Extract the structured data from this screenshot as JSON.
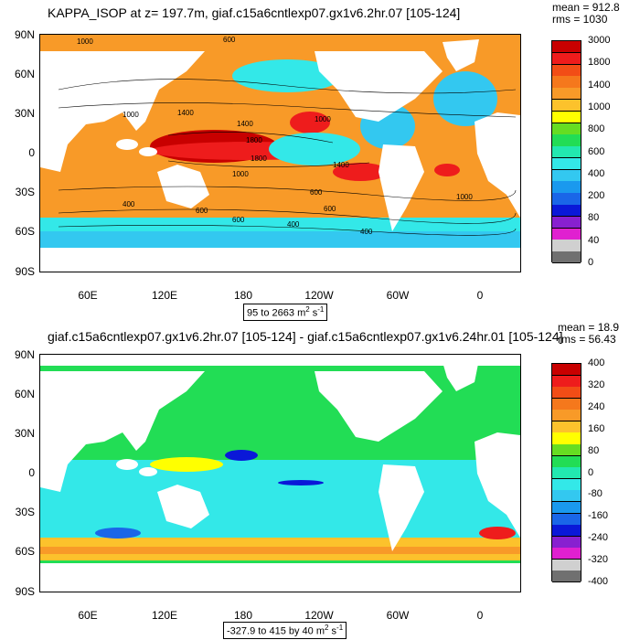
{
  "panel1": {
    "title": "KAPPA_ISOP at z= 197.7m, giaf.c15a6cntlexp07.gx1v6.2hr.07 [105-124]",
    "mean": "mean = 912.8",
    "rms": "rms = 1030",
    "range_text": "95 to 2663",
    "range_units": "m",
    "range_units_exp": "2",
    "range_units_tail": " s",
    "range_units_tail_exp": "-1",
    "lat_labels": [
      "90N",
      "60N",
      "30N",
      "0",
      "30S",
      "60S",
      "90S"
    ],
    "lon_labels": [
      "60E",
      "120E",
      "180",
      "120W",
      "60W",
      "0"
    ],
    "colorbar_labels": [
      "3000",
      "1800",
      "1400",
      "1000",
      "800",
      "600",
      "400",
      "200",
      "80",
      "40",
      "0"
    ],
    "colorbar_colors": [
      "#c80000",
      "#ee1c1c",
      "#f24d16",
      "#f5781c",
      "#f89a28",
      "#fcc22c",
      "#ffff00",
      "#66dd22",
      "#22dd55",
      "#22e8b0",
      "#33e8e8",
      "#33c8f0",
      "#1a99ee",
      "#1a66e8",
      "#0a18d8",
      "#8820d0",
      "#e020d0",
      "#d0d0d0",
      "#707070"
    ],
    "contour_labels": [
      "1000",
      "600",
      "1000",
      "1400",
      "1400",
      "1800",
      "1800",
      "1000",
      "1400",
      "1000",
      "600",
      "600",
      "1000",
      "400",
      "600",
      "600",
      "400",
      "400"
    ]
  },
  "panel2": {
    "title": "giaf.c15a6cntlexp07.gx1v6.2hr.07 [105-124] - giaf.c15a6cntlexp07.gx1v6.24hr.01 [105-124]",
    "mean": "mean = 18.9",
    "rms": "rms = 56.43",
    "range_text": "-327.9 to 415 by 40",
    "range_units": "m",
    "range_units_exp": "2",
    "range_units_tail": " s",
    "range_units_tail_exp": "-1",
    "lat_labels": [
      "90N",
      "60N",
      "30N",
      "0",
      "30S",
      "60S",
      "90S"
    ],
    "lon_labels": [
      "60E",
      "120E",
      "180",
      "120W",
      "60W",
      "0"
    ],
    "colorbar_labels": [
      "400",
      "320",
      "240",
      "160",
      "80",
      "0",
      "-80",
      "-160",
      "-240",
      "-320",
      "-400"
    ],
    "colorbar_colors": [
      "#c80000",
      "#ee1c1c",
      "#f24d16",
      "#f5781c",
      "#f89a28",
      "#fcc22c",
      "#ffff00",
      "#66dd22",
      "#22dd55",
      "#22e8b0",
      "#33e8e8",
      "#33c8f0",
      "#1a99ee",
      "#1a66e8",
      "#0a18d8",
      "#8820d0",
      "#e020d0",
      "#d0d0d0",
      "#707070"
    ]
  }
}
